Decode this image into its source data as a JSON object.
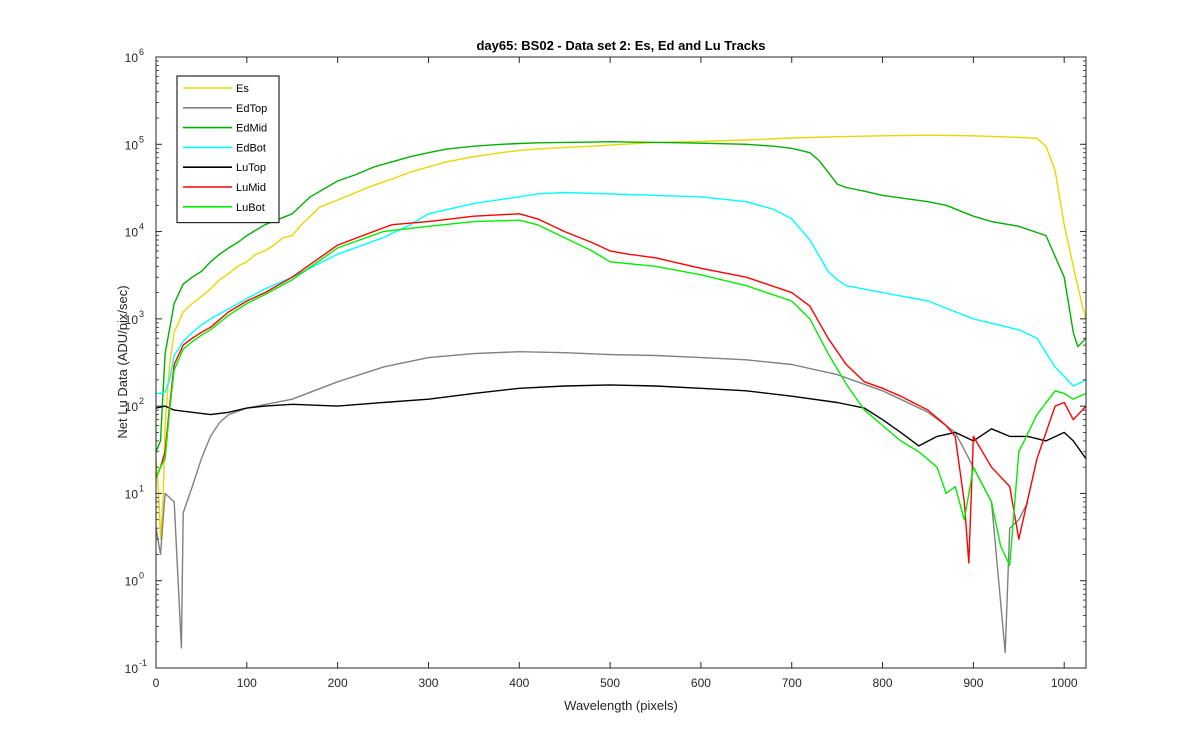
{
  "chart_data": {
    "type": "line",
    "title": "day65: BS02 - Data set 2: Es, Ed and Lu Tracks",
    "xlabel": "Wavelength (pixels)",
    "ylabel": "Net Lu Data (ADU/pix/sec)",
    "xlim": [
      0,
      1024
    ],
    "ylim": [
      0.1,
      1000000
    ],
    "yscale": "log",
    "x_ticks": [
      0,
      100,
      200,
      300,
      400,
      500,
      600,
      700,
      800,
      900,
      1000
    ],
    "y_ticks": [
      {
        "value": 0.1,
        "base": "10",
        "exp": "-1"
      },
      {
        "value": 1,
        "base": "10",
        "exp": "0"
      },
      {
        "value": 10,
        "base": "10",
        "exp": "1"
      },
      {
        "value": 100,
        "base": "10",
        "exp": "2"
      },
      {
        "value": 1000,
        "base": "10",
        "exp": "3"
      },
      {
        "value": 10000,
        "base": "10",
        "exp": "4"
      },
      {
        "value": 100000,
        "base": "10",
        "exp": "5"
      },
      {
        "value": 1000000,
        "base": "10",
        "exp": "6"
      }
    ],
    "grid": false,
    "legend_position": "top-left",
    "series": [
      {
        "name": "Es",
        "color": "#e6d800",
        "x": [
          0,
          3,
          5,
          8,
          10,
          15,
          20,
          30,
          40,
          50,
          60,
          70,
          80,
          90,
          100,
          110,
          120,
          130,
          140,
          150,
          160,
          170,
          180,
          200,
          220,
          240,
          260,
          280,
          300,
          320,
          350,
          380,
          400,
          420,
          450,
          480,
          500,
          550,
          600,
          650,
          700,
          750,
          800,
          850,
          900,
          950,
          970,
          980,
          990,
          1000,
          1010,
          1020,
          1024
        ],
        "values": [
          25,
          10,
          3,
          10,
          60,
          300,
          700,
          1200,
          1500,
          1800,
          2200,
          2800,
          3300,
          4000,
          4500,
          5500,
          6000,
          7000,
          8500,
          9000,
          12000,
          15000,
          19000,
          23000,
          28000,
          34000,
          40000,
          48000,
          55000,
          63000,
          72000,
          80000,
          85000,
          88000,
          92000,
          95000,
          98000,
          105000,
          108000,
          112000,
          118000,
          122000,
          125000,
          127000,
          125000,
          120000,
          117000,
          95000,
          50000,
          12000,
          4000,
          1400,
          1000
        ]
      },
      {
        "name": "EdTop",
        "color": "#808080",
        "x": [
          0,
          5,
          10,
          20,
          28,
          30,
          40,
          50,
          60,
          70,
          80,
          100,
          150,
          200,
          250,
          300,
          350,
          400,
          450,
          500,
          550,
          600,
          650,
          700,
          750,
          800,
          850,
          880,
          900,
          920,
          935,
          940,
          950,
          960
        ],
        "values": [
          4,
          2,
          10,
          8,
          0.17,
          6,
          12,
          25,
          45,
          65,
          80,
          95,
          120,
          190,
          280,
          360,
          400,
          420,
          410,
          390,
          380,
          360,
          340,
          300,
          230,
          150,
          85,
          50,
          20,
          8,
          0.15,
          4,
          5,
          8
        ]
      },
      {
        "name": "EdMid",
        "color": "#00b000",
        "x": [
          0,
          5,
          10,
          20,
          30,
          40,
          50,
          60,
          70,
          80,
          90,
          100,
          120,
          150,
          170,
          200,
          220,
          240,
          260,
          280,
          300,
          320,
          350,
          380,
          400,
          420,
          450,
          480,
          500,
          520,
          550,
          580,
          600,
          650,
          680,
          700,
          720,
          730,
          740,
          750,
          760,
          780,
          800,
          850,
          870,
          900,
          920,
          950,
          980,
          1000,
          1010,
          1015,
          1024
        ],
        "values": [
          30,
          40,
          400,
          1500,
          2500,
          3000,
          3500,
          4500,
          5500,
          6500,
          7500,
          9000,
          12000,
          16000,
          25000,
          38000,
          45000,
          55000,
          63000,
          72000,
          80000,
          88000,
          95000,
          100000,
          102000,
          104000,
          105000,
          106000,
          107000,
          106000,
          105000,
          104000,
          103000,
          100000,
          95000,
          90000,
          80000,
          65000,
          48000,
          35000,
          32000,
          29000,
          26000,
          22000,
          20000,
          15000,
          13000,
          11500,
          9000,
          3000,
          700,
          480,
          600
        ]
      },
      {
        "name": "EdBot",
        "color": "#00ffff",
        "x": [
          0,
          5,
          10,
          15,
          20,
          30,
          40,
          50,
          60,
          80,
          100,
          120,
          150,
          200,
          250,
          280,
          300,
          350,
          400,
          420,
          450,
          500,
          550,
          600,
          650,
          680,
          700,
          720,
          740,
          750,
          760,
          800,
          850,
          900,
          950,
          970,
          990,
          1010,
          1024
        ],
        "values": [
          140,
          140,
          145,
          200,
          380,
          550,
          700,
          850,
          1000,
          1300,
          1700,
          2200,
          3000,
          5500,
          8500,
          12000,
          16000,
          21000,
          25000,
          27000,
          28000,
          27000,
          26000,
          25000,
          22000,
          18000,
          14000,
          8000,
          3500,
          2800,
          2400,
          2000,
          1600,
          1000,
          750,
          600,
          280,
          170,
          200
        ]
      },
      {
        "name": "LuTop",
        "color": "#000000",
        "x": [
          0,
          10,
          20,
          40,
          60,
          80,
          100,
          120,
          150,
          200,
          250,
          300,
          350,
          400,
          450,
          500,
          550,
          600,
          650,
          700,
          750,
          780,
          800,
          820,
          840,
          860,
          880,
          900,
          920,
          940,
          960,
          980,
          1000,
          1010,
          1024
        ],
        "values": [
          95,
          100,
          90,
          85,
          80,
          85,
          95,
          100,
          105,
          100,
          110,
          120,
          140,
          160,
          170,
          175,
          170,
          160,
          150,
          130,
          110,
          95,
          70,
          50,
          35,
          45,
          50,
          40,
          55,
          45,
          45,
          40,
          50,
          40,
          25
        ]
      },
      {
        "name": "LuMid",
        "color": "#ff0000",
        "x": [
          0,
          5,
          10,
          15,
          20,
          30,
          40,
          50,
          60,
          80,
          100,
          120,
          150,
          200,
          250,
          260,
          300,
          350,
          400,
          420,
          450,
          480,
          500,
          520,
          550,
          600,
          650,
          700,
          720,
          740,
          760,
          780,
          800,
          820,
          850,
          870,
          880,
          890,
          895,
          900,
          920,
          940,
          950,
          970,
          990,
          1000,
          1010,
          1024
        ],
        "values": [
          15,
          20,
          30,
          100,
          300,
          500,
          600,
          700,
          800,
          1200,
          1600,
          2000,
          3000,
          7000,
          11000,
          12000,
          13000,
          15000,
          16000,
          14000,
          10000,
          7500,
          6000,
          5500,
          5000,
          3800,
          3000,
          2000,
          1400,
          600,
          300,
          190,
          160,
          130,
          90,
          60,
          45,
          8,
          1.6,
          45,
          20,
          12,
          3,
          25,
          100,
          110,
          70,
          100
        ]
      },
      {
        "name": "LuBot",
        "color": "#00ee00",
        "x": [
          0,
          5,
          10,
          15,
          20,
          30,
          40,
          50,
          60,
          80,
          100,
          120,
          150,
          200,
          250,
          300,
          350,
          400,
          420,
          450,
          480,
          500,
          550,
          600,
          650,
          700,
          720,
          740,
          760,
          780,
          800,
          820,
          840,
          860,
          870,
          880,
          890,
          900,
          920,
          930,
          940,
          950,
          970,
          990,
          1000,
          1010,
          1024
        ],
        "values": [
          15,
          20,
          25,
          90,
          260,
          450,
          550,
          650,
          750,
          1100,
          1500,
          1900,
          2800,
          6500,
          10000,
          11500,
          13000,
          13500,
          12000,
          8500,
          6000,
          4500,
          4000,
          3200,
          2400,
          1600,
          1000,
          400,
          180,
          90,
          60,
          40,
          30,
          20,
          10,
          12,
          5,
          20,
          8,
          2.5,
          1.5,
          30,
          80,
          150,
          140,
          120,
          140
        ]
      }
    ]
  }
}
